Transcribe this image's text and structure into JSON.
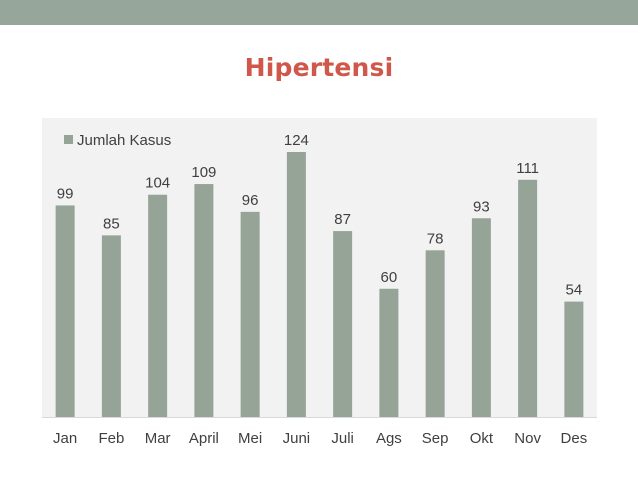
{
  "slide": {
    "title": "Hipertensi"
  },
  "colors": {
    "top_band": "#97a69a",
    "title": "#d0584a",
    "plot_background": "#f2f2f2",
    "bar": "#95a497",
    "text": "#404040"
  },
  "chart_data": {
    "type": "bar",
    "title": "",
    "xlabel": "",
    "ylabel": "",
    "categories": [
      "Jan",
      "Feb",
      "Mar",
      "April",
      "Mei",
      "Juni",
      "Juli",
      "Ags",
      "Sep",
      "Okt",
      "Nov",
      "Des"
    ],
    "series": [
      {
        "name": "Jumlah Kasus",
        "values": [
          99,
          85,
          104,
          109,
          96,
          124,
          87,
          60,
          78,
          93,
          111,
          54
        ]
      }
    ],
    "ylim": [
      0,
      124
    ],
    "grid": false,
    "data_labels": true,
    "legend_position": "top-left"
  }
}
